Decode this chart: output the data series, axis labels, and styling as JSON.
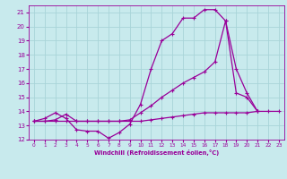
{
  "xlabel": "Windchill (Refroidissement éolien,°C)",
  "bg_color": "#c8eaed",
  "grid_color": "#a8d4d8",
  "line_color": "#990099",
  "xlim": [
    -0.5,
    23.5
  ],
  "ylim": [
    12,
    21.5
  ],
  "xticks": [
    0,
    1,
    2,
    3,
    4,
    5,
    6,
    7,
    8,
    9,
    10,
    11,
    12,
    13,
    14,
    15,
    16,
    17,
    18,
    19,
    20,
    21,
    22,
    23
  ],
  "yticks": [
    12,
    13,
    14,
    15,
    16,
    17,
    18,
    19,
    20,
    21
  ],
  "line1_x": [
    0,
    1,
    2,
    3,
    4,
    5,
    6,
    7,
    8,
    9,
    10,
    11,
    12,
    13,
    14,
    15,
    16,
    17,
    18,
    19,
    20,
    21
  ],
  "line1_y": [
    13.3,
    13.5,
    13.9,
    13.5,
    12.7,
    12.6,
    12.6,
    12.1,
    12.5,
    13.1,
    14.5,
    17.0,
    19.0,
    19.5,
    20.6,
    20.6,
    21.2,
    21.2,
    20.4,
    15.3,
    15.0,
    14.0
  ],
  "line2_x": [
    0,
    1,
    2,
    3,
    4,
    5,
    6,
    7,
    8,
    9,
    10,
    11,
    12,
    13,
    14,
    15,
    16,
    17,
    18,
    19,
    20,
    21
  ],
  "line2_y": [
    13.3,
    13.3,
    13.4,
    13.8,
    13.3,
    13.3,
    13.3,
    13.3,
    13.3,
    13.4,
    13.9,
    14.4,
    15.0,
    15.5,
    16.0,
    16.4,
    16.8,
    17.5,
    20.4,
    17.0,
    15.3,
    14.0
  ],
  "line3_x": [
    0,
    1,
    2,
    3,
    4,
    5,
    6,
    7,
    8,
    9,
    10,
    11,
    12,
    13,
    14,
    15,
    16,
    17,
    18,
    19,
    20,
    21,
    22,
    23
  ],
  "line3_y": [
    13.3,
    13.3,
    13.3,
    13.3,
    13.3,
    13.3,
    13.3,
    13.3,
    13.3,
    13.3,
    13.3,
    13.4,
    13.5,
    13.6,
    13.7,
    13.8,
    13.9,
    13.9,
    13.9,
    13.9,
    13.9,
    14.0,
    14.0,
    14.0
  ]
}
